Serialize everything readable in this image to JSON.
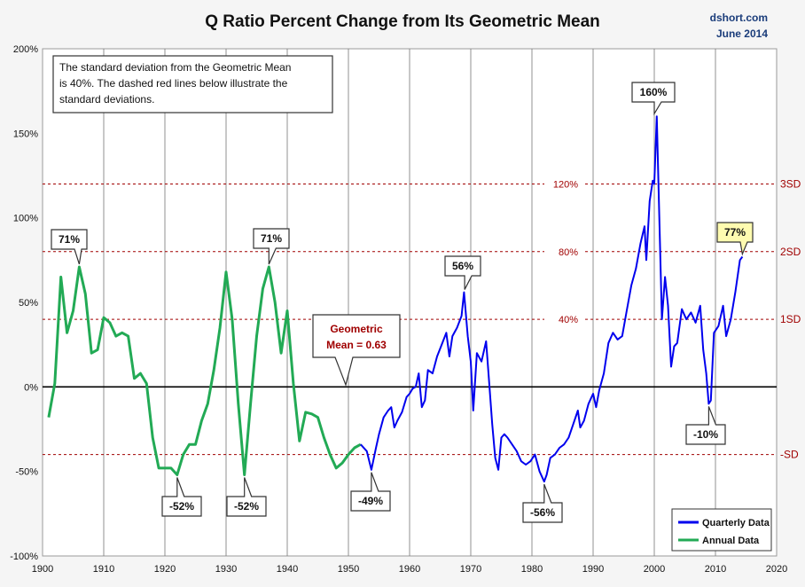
{
  "header": {
    "title": "Q Ratio Percent Change from Its Geometric Mean",
    "source_line1": "dshort.com",
    "source_line2": "June 2014"
  },
  "note_text": {
    "line1": "The standard deviation from the Geometric Mean",
    "line2": "is 40%.  The dashed red lines below illustrate the",
    "line3": "standard deviations."
  },
  "mean_callout": {
    "line1": "Geometric",
    "line2": "Mean = 0.63"
  },
  "colors": {
    "quarterly": "#0000ee",
    "annual": "#22aa55",
    "sd": "#a00000",
    "grid": "#777777"
  },
  "chart_data": {
    "type": "line",
    "title": "Q Ratio Percent Change from Its Geometric Mean",
    "xlim": [
      1900,
      2020
    ],
    "ylim": [
      -100,
      200
    ],
    "x_ticks": [
      "1900",
      "1910",
      "1920",
      "1930",
      "1940",
      "1950",
      "1960",
      "1970",
      "1980",
      "1990",
      "2000",
      "2010",
      "2020"
    ],
    "y_ticks": [
      "200%",
      "150%",
      "100%",
      "50%",
      "0%",
      "-50%",
      "-100%"
    ],
    "grid": "vertical",
    "legend_position": "bottom-right",
    "sd_lines": [
      {
        "value": 120,
        "left_label": "120%",
        "right_label": "3SD"
      },
      {
        "value": 80,
        "left_label": "80%",
        "right_label": "2SD"
      },
      {
        "value": 40,
        "left_label": "40%",
        "right_label": "1SD"
      },
      {
        "value": -40,
        "left_label": "",
        "right_label": "-SD"
      }
    ],
    "series": [
      {
        "name": "Annual Data",
        "x": [
          1901,
          1902,
          1903,
          1904,
          1905,
          1906,
          1907,
          1908,
          1909,
          1910,
          1911,
          1912,
          1913,
          1914,
          1915,
          1916,
          1917,
          1918,
          1919,
          1920,
          1921,
          1922,
          1923,
          1924,
          1925,
          1926,
          1927,
          1928,
          1929,
          1930,
          1931,
          1932,
          1933,
          1934,
          1935,
          1936,
          1937,
          1938,
          1939,
          1940,
          1941,
          1942,
          1943,
          1944,
          1945,
          1946,
          1947,
          1948,
          1949,
          1950,
          1951,
          1952
        ],
        "y": [
          -18,
          2,
          65,
          32,
          45,
          71,
          55,
          20,
          22,
          41,
          38,
          30,
          32,
          30,
          5,
          8,
          2,
          -30,
          -48,
          -48,
          -48,
          -52,
          -40,
          -34,
          -34,
          -20,
          -10,
          10,
          35,
          68,
          40,
          -10,
          -52,
          -10,
          30,
          58,
          71,
          50,
          20,
          45,
          2,
          -32,
          -15,
          -16,
          -18,
          -30,
          -40,
          -48,
          -45,
          -40,
          -36,
          -34
        ]
      },
      {
        "name": "Quarterly Data",
        "x": [
          1952,
          1953,
          1953.75,
          1954.5,
          1955,
          1955.75,
          1956.5,
          1957,
          1957.5,
          1958,
          1958.75,
          1959.5,
          1960,
          1960.5,
          1961,
          1961.5,
          1962,
          1962.5,
          1963,
          1963.75,
          1964.5,
          1965.25,
          1966,
          1966.5,
          1967,
          1967.75,
          1968.5,
          1968.9,
          1969.5,
          1970,
          1970.4,
          1971,
          1971.75,
          1972.5,
          1973,
          1973.5,
          1974,
          1974.5,
          1975,
          1975.5,
          1976,
          1976.75,
          1977.5,
          1978.25,
          1979,
          1979.75,
          1980.5,
          1981.25,
          1982,
          1982.4,
          1983,
          1983.75,
          1984.5,
          1985.25,
          1986,
          1986.75,
          1987.5,
          1987.9,
          1988.5,
          1989.25,
          1990,
          1990.5,
          1991,
          1991.75,
          1992.5,
          1993.25,
          1994,
          1994.75,
          1995.5,
          1996.25,
          1997,
          1997.75,
          1998.4,
          1998.7,
          1999.25,
          1999.75,
          2000,
          2000.4,
          2000.75,
          2001.25,
          2001.75,
          2002.25,
          2002.75,
          2003.25,
          2003.75,
          2004.5,
          2005.25,
          2006,
          2006.75,
          2007.5,
          2008,
          2008.5,
          2008.9,
          2009.25,
          2009.75,
          2010.5,
          2011.25,
          2011.75,
          2012.5,
          2013.25,
          2014,
          2014.4
        ],
        "y": [
          -34,
          -38,
          -49,
          -36,
          -28,
          -18,
          -14,
          -12,
          -24,
          -20,
          -15,
          -6,
          -4,
          -1,
          0,
          8,
          -12,
          -8,
          10,
          8,
          18,
          25,
          32,
          18,
          30,
          35,
          42,
          56,
          30,
          15,
          -14,
          20,
          15,
          27,
          3,
          -22,
          -42,
          -49,
          -30,
          -28,
          -30,
          -34,
          -38,
          -44,
          -46,
          -44,
          -40,
          -50,
          -56,
          -52,
          -42,
          -40,
          -36,
          -34,
          -30,
          -22,
          -14,
          -24,
          -20,
          -10,
          -4,
          -12,
          -2,
          8,
          26,
          32,
          28,
          30,
          45,
          60,
          70,
          85,
          95,
          75,
          110,
          122,
          120,
          160,
          110,
          40,
          65,
          48,
          12,
          24,
          26,
          46,
          40,
          44,
          38,
          48,
          22,
          8,
          -10,
          -8,
          32,
          36,
          48,
          30,
          40,
          56,
          75,
          77
        ]
      }
    ],
    "annotations": [
      "71%",
      "71%",
      "56%",
      "160%",
      "77%",
      "-52%",
      "-52%",
      "-49%",
      "-56%",
      "-10%"
    ]
  }
}
